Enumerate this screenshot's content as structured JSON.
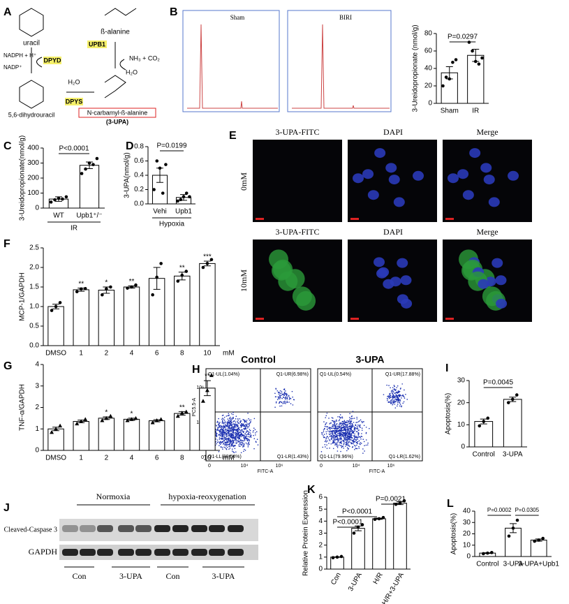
{
  "panel_letters": [
    "A",
    "B",
    "C",
    "D",
    "E",
    "F",
    "G",
    "H",
    "I",
    "J",
    "K",
    "L"
  ],
  "pathway": [
    "uracil",
    "NADPH + H⁺",
    "NADP⁺",
    "DPYD",
    "5,6-dihydrouracil",
    "DPYS",
    "H₂O",
    "N-carbamyl-ß-alanine",
    "(3-UPA)",
    "UPB1",
    "NH₃ + CO₂",
    "H₂O",
    "ß-alanine"
  ],
  "chromatograms": [
    "Sham",
    "BIRI"
  ],
  "microscopy": {
    "columns": [
      "3-UPA-FITC",
      "DAPI",
      "Merge"
    ],
    "rows": [
      "0mM",
      "10mM"
    ]
  },
  "flow": {
    "plots": [
      {
        "title": "Control",
        "quadrants": [
          "Q1-UL(1.04%)",
          "Q1-UR(6.98%)",
          "Q1-LL(90.54%)",
          "Q1-LR(1.43%)"
        ]
      },
      {
        "title": "3-UPA",
        "quadrants": [
          "Q1-UL(0.54%)",
          "Q1-UR(17.88%)",
          "Q1-LL(79.96%)",
          "Q1-LR(1.62%)"
        ]
      }
    ],
    "x_label": "FITC-A",
    "y_label": "PC5.5-A",
    "ticks": [
      "0",
      "10⁴",
      "10⁶"
    ]
  },
  "western": {
    "groups": [
      "Normoxia",
      "hypoxia-reoxygenation"
    ],
    "bands": [
      "Cleaved-Caspase 3",
      "GAPDH"
    ],
    "lanes": [
      "Con",
      "3-UPA",
      "Con",
      "3-UPA"
    ]
  },
  "chart_data": [
    {
      "type": "bar",
      "y_label": "3-Ureidopropionate (nmol/g)",
      "categories": [
        "Sham",
        "IR"
      ],
      "values": [
        35,
        55
      ],
      "errors": [
        7,
        7
      ],
      "points": [
        [
          20,
          30,
          28,
          47,
          50
        ],
        [
          70,
          60,
          48,
          45,
          52
        ]
      ],
      "ylim": [
        0,
        80
      ],
      "yticks": [
        0,
        20,
        40,
        60,
        80
      ],
      "annotations": [
        "P=0.0297"
      ]
    },
    {
      "type": "bar",
      "y_label": "3-Ureidopropionate(nmol/g)",
      "categories": [
        "WT",
        "Upb1⁺/⁻"
      ],
      "group_label": "IR",
      "values": [
        60,
        285
      ],
      "errors": [
        15,
        22
      ],
      "points": [
        [
          40,
          55,
          65,
          60,
          75
        ],
        [
          230,
          260,
          300,
          290,
          330
        ]
      ],
      "ylim": [
        0,
        400
      ],
      "yticks": [
        0,
        100,
        200,
        300,
        400
      ],
      "annotations": [
        "P<0.0001"
      ]
    },
    {
      "type": "bar",
      "y_label": "3-UPA(nmol/g)",
      "categories": [
        "Vehi",
        "Upb1"
      ],
      "group_label": "Hypoxia",
      "values": [
        0.4,
        0.09
      ],
      "errors": [
        0.1,
        0.04
      ],
      "points": [
        [
          0.2,
          0.6,
          0.5,
          0.15,
          0.55
        ],
        [
          0.04,
          0.06,
          0.1,
          0.15,
          0.1
        ]
      ],
      "ylim": [
        0,
        0.8
      ],
      "yticks": [
        {
          "value": 0,
          "label": "0.0"
        },
        0.2,
        0.4,
        0.6,
        0.8
      ],
      "annotations": [
        "P=0.0199"
      ]
    },
    {
      "type": "bar",
      "y_label": "MCP-1/GAPDH",
      "categories": [
        "DMSO",
        "1",
        "2",
        "4",
        "6",
        "8",
        "10"
      ],
      "unit": "mM",
      "values": [
        1.0,
        1.43,
        1.42,
        1.5,
        1.72,
        1.78,
        2.1
      ],
      "errors": [
        0.06,
        0.04,
        0.08,
        0.03,
        0.28,
        0.1,
        0.06
      ],
      "points": [
        [
          0.9,
          1.0,
          1.1
        ],
        [
          1.38,
          1.45,
          1.46
        ],
        [
          1.3,
          1.45,
          1.5
        ],
        [
          1.47,
          1.5,
          1.55
        ],
        [
          1.3,
          1.75,
          2.1
        ],
        [
          1.65,
          1.8,
          1.9
        ],
        [
          2.0,
          2.1,
          2.2
        ]
      ],
      "ylim": [
        0,
        2.5
      ],
      "yticks": [
        {
          "value": 0,
          "label": "0.0"
        },
        0.5,
        {
          "value": 1,
          "label": "1.0"
        },
        1.5,
        {
          "value": 2,
          "label": "2.0"
        },
        2.5
      ],
      "significance": [
        null,
        "**",
        "*",
        "**",
        null,
        "**",
        "***"
      ]
    },
    {
      "type": "bar",
      "y_label": "TNF-α/GAPDH",
      "categories": [
        "DMSO",
        "1",
        "2",
        "4",
        "6",
        "8",
        "10"
      ],
      "unit": "mM",
      "values": [
        1.0,
        1.35,
        1.5,
        1.45,
        1.38,
        1.72,
        2.9
      ],
      "errors": [
        0.08,
        0.06,
        0.06,
        0.05,
        0.05,
        0.08,
        0.35
      ],
      "points": [
        [
          0.85,
          1.0,
          1.15
        ],
        [
          1.25,
          1.35,
          1.45
        ],
        [
          1.4,
          1.5,
          1.6
        ],
        [
          1.4,
          1.45,
          1.5
        ],
        [
          1.3,
          1.4,
          1.45
        ],
        [
          1.6,
          1.75,
          1.8
        ],
        [
          2.3,
          2.8,
          3.5
        ]
      ],
      "ylim": [
        0,
        4
      ],
      "yticks": [
        0,
        1,
        2,
        3,
        4
      ],
      "significance": [
        null,
        null,
        "*",
        "*",
        null,
        "**",
        "**"
      ]
    },
    {
      "type": "bar",
      "y_label": "Apoptosis(%)",
      "categories": [
        "Control",
        "3-UPA"
      ],
      "values": [
        11.5,
        21.5
      ],
      "errors": [
        1.1,
        1.0
      ],
      "points": [
        [
          9.5,
          11.5,
          13
        ],
        [
          20,
          21.5,
          23.5
        ]
      ],
      "ylim": [
        0,
        30
      ],
      "yticks": [
        0,
        10,
        20,
        30
      ],
      "annotations": [
        "P=0.0045"
      ]
    },
    {
      "type": "bar",
      "y_label": "Relative Protein Expression",
      "categories": [
        "Con",
        "3-UPA",
        "H/R",
        "H/R+3-UPA"
      ],
      "values": [
        1.0,
        3.4,
        4.2,
        5.5
      ],
      "errors": [
        0.02,
        0.2,
        0.05,
        0.12
      ],
      "points": [
        [
          0.95,
          1.0,
          1.05
        ],
        [
          3.0,
          3.5,
          3.7
        ],
        [
          4.15,
          4.2,
          4.3
        ],
        [
          5.4,
          5.5,
          5.7
        ]
      ],
      "ylim": [
        0,
        6
      ],
      "yticks": [
        0,
        1,
        2,
        3,
        4,
        5,
        6
      ],
      "annotations": [
        "P<0.0001",
        "P<0.0001",
        "P=0.0021"
      ]
    },
    {
      "type": "bar",
      "y_label": "Apoptosis(%)",
      "categories": [
        "Control",
        "3-UPA",
        "3-UPA+Upb1"
      ],
      "values": [
        3,
        25,
        14.5
      ],
      "errors": [
        0.3,
        4,
        1
      ],
      "points": [
        [
          2.5,
          3,
          3.5
        ],
        [
          18,
          25,
          32
        ],
        [
          13.5,
          14.5,
          16
        ]
      ],
      "ylim": [
        0,
        40
      ],
      "yticks": [
        0,
        10,
        20,
        30,
        40
      ],
      "annotations": [
        "P=0.0002",
        "P=0.0305"
      ]
    }
  ]
}
